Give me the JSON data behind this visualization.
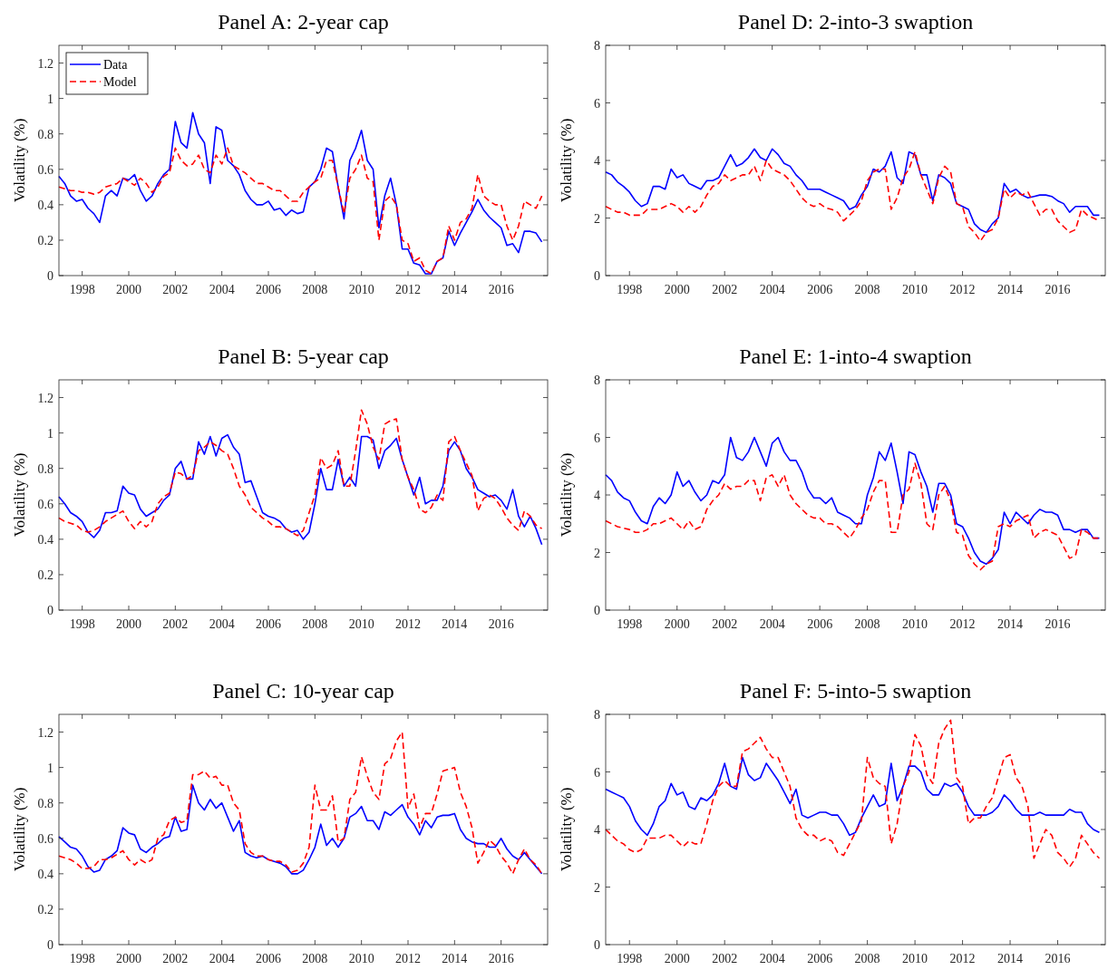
{
  "chart_data": [
    {
      "type": "line",
      "title": "Panel A: 2-year cap",
      "ylabel": "Volatility (%)",
      "legend": "top left",
      "xlim": [
        1997,
        2018
      ],
      "xticks": [
        1998,
        2000,
        2002,
        2004,
        2006,
        2008,
        2010,
        2012,
        2014,
        2016
      ],
      "ylim": [
        0,
        1.3
      ],
      "yticks": [
        0,
        0.2,
        0.4,
        0.6,
        0.8,
        1,
        1.2
      ],
      "x": [
        1997,
        1997.25,
        1997.5,
        1997.75,
        1998,
        1998.25,
        1998.5,
        1998.75,
        1999,
        1999.25,
        1999.5,
        1999.75,
        2000,
        2000.25,
        2000.5,
        2000.75,
        2001,
        2001.25,
        2001.5,
        2001.75,
        2002,
        2002.25,
        2002.5,
        2002.75,
        2003,
        2003.25,
        2003.5,
        2003.75,
        2004,
        2004.25,
        2004.5,
        2004.75,
        2005,
        2005.25,
        2005.5,
        2005.75,
        2006,
        2006.25,
        2006.5,
        2006.75,
        2007,
        2007.25,
        2007.5,
        2007.75,
        2008,
        2008.25,
        2008.5,
        2008.75,
        2009,
        2009.25,
        2009.5,
        2009.75,
        2010,
        2010.25,
        2010.5,
        2010.75,
        2011,
        2011.25,
        2011.5,
        2011.75,
        2012,
        2012.25,
        2012.5,
        2012.75,
        2013,
        2013.25,
        2013.5,
        2013.75,
        2014,
        2014.25,
        2014.5,
        2014.75,
        2015,
        2015.25,
        2015.5,
        2015.75,
        2016,
        2016.25,
        2016.5,
        2016.75,
        2017,
        2017.25,
        2017.5,
        2017.75
      ],
      "series": [
        {
          "name": "Data",
          "color": "#0000ff",
          "line_style": "solid",
          "values": [
            0.56,
            0.52,
            0.45,
            0.42,
            0.43,
            0.38,
            0.35,
            0.3,
            0.45,
            0.48,
            0.45,
            0.55,
            0.54,
            0.57,
            0.48,
            0.42,
            0.45,
            0.52,
            0.57,
            0.6,
            0.87,
            0.75,
            0.72,
            0.92,
            0.8,
            0.75,
            0.52,
            0.84,
            0.82,
            0.65,
            0.62,
            0.57,
            0.48,
            0.43,
            0.4,
            0.4,
            0.42,
            0.37,
            0.38,
            0.34,
            0.37,
            0.35,
            0.36,
            0.5,
            0.53,
            0.6,
            0.72,
            0.7,
            0.5,
            0.32,
            0.65,
            0.72,
            0.82,
            0.65,
            0.6,
            0.27,
            0.45,
            0.55,
            0.4,
            0.15,
            0.15,
            0.07,
            0.06,
            0.01,
            0.01,
            0.08,
            0.1,
            0.25,
            0.17,
            0.24,
            0.3,
            0.36,
            0.43,
            0.37,
            0.33,
            0.3,
            0.27,
            0.17,
            0.18,
            0.13,
            0.25,
            0.25,
            0.24,
            0.19
          ]
        },
        {
          "name": "Model",
          "color": "#ff0000",
          "line_style": "dashed",
          "values": [
            0.5,
            0.49,
            0.48,
            0.48,
            0.47,
            0.47,
            0.46,
            0.47,
            0.5,
            0.51,
            0.52,
            0.55,
            0.53,
            0.51,
            0.55,
            0.52,
            0.47,
            0.5,
            0.56,
            0.58,
            0.72,
            0.65,
            0.62,
            0.63,
            0.68,
            0.6,
            0.58,
            0.68,
            0.63,
            0.72,
            0.62,
            0.6,
            0.58,
            0.55,
            0.52,
            0.52,
            0.5,
            0.48,
            0.48,
            0.45,
            0.42,
            0.42,
            0.47,
            0.5,
            0.53,
            0.55,
            0.65,
            0.65,
            0.5,
            0.35,
            0.55,
            0.6,
            0.68,
            0.55,
            0.53,
            0.2,
            0.42,
            0.45,
            0.4,
            0.2,
            0.18,
            0.08,
            0.1,
            0.03,
            0.01,
            0.08,
            0.1,
            0.28,
            0.2,
            0.3,
            0.32,
            0.38,
            0.57,
            0.45,
            0.42,
            0.4,
            0.4,
            0.28,
            0.2,
            0.28,
            0.42,
            0.4,
            0.38,
            0.45
          ]
        }
      ]
    },
    {
      "type": "line",
      "title": "Panel D: 2-into-3 swaption",
      "ylabel": "Volatility (%)",
      "legend": false,
      "xlim": [
        1997,
        2018
      ],
      "xticks": [
        1998,
        2000,
        2002,
        2004,
        2006,
        2008,
        2010,
        2012,
        2014,
        2016
      ],
      "ylim": [
        0,
        8
      ],
      "yticks": [
        0,
        2,
        4,
        6,
        8
      ],
      "x": [
        1997,
        1997.25,
        1997.5,
        1997.75,
        1998,
        1998.25,
        1998.5,
        1998.75,
        1999,
        1999.25,
        1999.5,
        1999.75,
        2000,
        2000.25,
        2000.5,
        2000.75,
        2001,
        2001.25,
        2001.5,
        2001.75,
        2002,
        2002.25,
        2002.5,
        2002.75,
        2003,
        2003.25,
        2003.5,
        2003.75,
        2004,
        2004.25,
        2004.5,
        2004.75,
        2005,
        2005.25,
        2005.5,
        2005.75,
        2006,
        2006.25,
        2006.5,
        2006.75,
        2007,
        2007.25,
        2007.5,
        2007.75,
        2008,
        2008.25,
        2008.5,
        2008.75,
        2009,
        2009.25,
        2009.5,
        2009.75,
        2010,
        2010.25,
        2010.5,
        2010.75,
        2011,
        2011.25,
        2011.5,
        2011.75,
        2012,
        2012.25,
        2012.5,
        2012.75,
        2013,
        2013.25,
        2013.5,
        2013.75,
        2014,
        2014.25,
        2014.5,
        2014.75,
        2015,
        2015.25,
        2015.5,
        2015.75,
        2016,
        2016.25,
        2016.5,
        2016.75,
        2017,
        2017.25,
        2017.5,
        2017.75
      ],
      "series": [
        {
          "color": "#0000ff",
          "line_style": "solid",
          "values": [
            3.6,
            3.5,
            3.25,
            3.1,
            2.9,
            2.6,
            2.4,
            2.5,
            3.1,
            3.1,
            3.0,
            3.7,
            3.4,
            3.5,
            3.2,
            3.1,
            3.0,
            3.3,
            3.3,
            3.4,
            3.8,
            4.2,
            3.8,
            3.9,
            4.1,
            4.4,
            4.1,
            4.0,
            4.4,
            4.2,
            3.9,
            3.8,
            3.5,
            3.3,
            3.0,
            3.0,
            3.0,
            2.9,
            2.8,
            2.7,
            2.6,
            2.3,
            2.4,
            2.8,
            3.1,
            3.7,
            3.6,
            3.8,
            4.3,
            3.4,
            3.2,
            4.3,
            4.2,
            3.5,
            3.5,
            2.6,
            3.5,
            3.4,
            3.2,
            2.5,
            2.4,
            2.3,
            1.8,
            1.6,
            1.5,
            1.8,
            2.0,
            3.2,
            2.9,
            3.0,
            2.8,
            2.7,
            2.75,
            2.8,
            2.8,
            2.75,
            2.6,
            2.5,
            2.2,
            2.4,
            2.4,
            2.4,
            2.1,
            2.1
          ]
        },
        {
          "color": "#ff0000",
          "line_style": "dashed",
          "values": [
            2.4,
            2.3,
            2.2,
            2.2,
            2.1,
            2.1,
            2.1,
            2.3,
            2.3,
            2.3,
            2.4,
            2.5,
            2.4,
            2.2,
            2.4,
            2.2,
            2.4,
            2.8,
            3.1,
            3.2,
            3.5,
            3.3,
            3.4,
            3.5,
            3.5,
            3.8,
            3.3,
            4.0,
            3.7,
            3.6,
            3.5,
            3.3,
            3.0,
            2.7,
            2.5,
            2.4,
            2.5,
            2.35,
            2.3,
            2.2,
            1.9,
            2.1,
            2.3,
            2.6,
            3.3,
            3.6,
            3.7,
            3.7,
            2.3,
            2.7,
            3.4,
            3.7,
            4.3,
            3.5,
            3.0,
            2.5,
            3.4,
            3.8,
            3.6,
            2.5,
            2.4,
            1.7,
            1.5,
            1.2,
            1.5,
            1.6,
            2.0,
            3.0,
            2.7,
            2.9,
            2.8,
            2.9,
            2.5,
            2.1,
            2.3,
            2.3,
            1.9,
            1.7,
            1.5,
            1.6,
            2.3,
            2.1,
            2.0,
            1.9
          ]
        }
      ]
    },
    {
      "type": "line",
      "title": "Panel B: 5-year cap",
      "ylabel": "Volatility (%)",
      "legend": false,
      "xlim": [
        1997,
        2018
      ],
      "xticks": [
        1998,
        2000,
        2002,
        2004,
        2006,
        2008,
        2010,
        2012,
        2014,
        2016
      ],
      "ylim": [
        0,
        1.3
      ],
      "yticks": [
        0,
        0.2,
        0.4,
        0.6,
        0.8,
        1,
        1.2
      ],
      "x": [
        1997,
        1997.25,
        1997.5,
        1997.75,
        1998,
        1998.25,
        1998.5,
        1998.75,
        1999,
        1999.25,
        1999.5,
        1999.75,
        2000,
        2000.25,
        2000.5,
        2000.75,
        2001,
        2001.25,
        2001.5,
        2001.75,
        2002,
        2002.25,
        2002.5,
        2002.75,
        2003,
        2003.25,
        2003.5,
        2003.75,
        2004,
        2004.25,
        2004.5,
        2004.75,
        2005,
        2005.25,
        2005.5,
        2005.75,
        2006,
        2006.25,
        2006.5,
        2006.75,
        2007,
        2007.25,
        2007.5,
        2007.75,
        2008,
        2008.25,
        2008.5,
        2008.75,
        2009,
        2009.25,
        2009.5,
        2009.75,
        2010,
        2010.25,
        2010.5,
        2010.75,
        2011,
        2011.25,
        2011.5,
        2011.75,
        2012,
        2012.25,
        2012.5,
        2012.75,
        2013,
        2013.25,
        2013.5,
        2013.75,
        2014,
        2014.25,
        2014.5,
        2014.75,
        2015,
        2015.25,
        2015.5,
        2015.75,
        2016,
        2016.25,
        2016.5,
        2016.75,
        2017,
        2017.25,
        2017.5,
        2017.75
      ],
      "series": [
        {
          "color": "#0000ff",
          "line_style": "solid",
          "values": [
            0.64,
            0.6,
            0.55,
            0.53,
            0.5,
            0.44,
            0.41,
            0.45,
            0.55,
            0.55,
            0.56,
            0.7,
            0.66,
            0.65,
            0.57,
            0.53,
            0.55,
            0.57,
            0.62,
            0.65,
            0.8,
            0.84,
            0.74,
            0.74,
            0.95,
            0.88,
            0.98,
            0.87,
            0.97,
            0.99,
            0.92,
            0.88,
            0.72,
            0.73,
            0.64,
            0.55,
            0.53,
            0.52,
            0.5,
            0.46,
            0.44,
            0.45,
            0.4,
            0.44,
            0.6,
            0.8,
            0.68,
            0.68,
            0.85,
            0.7,
            0.75,
            0.7,
            0.98,
            0.98,
            0.96,
            0.8,
            0.9,
            0.93,
            0.97,
            0.85,
            0.75,
            0.65,
            0.75,
            0.6,
            0.62,
            0.62,
            0.7,
            0.9,
            0.95,
            0.9,
            0.8,
            0.75,
            0.68,
            0.66,
            0.64,
            0.65,
            0.62,
            0.57,
            0.68,
            0.53,
            0.47,
            0.53,
            0.46,
            0.37
          ]
        },
        {
          "color": "#ff0000",
          "line_style": "dashed",
          "values": [
            0.52,
            0.5,
            0.49,
            0.48,
            0.45,
            0.44,
            0.45,
            0.47,
            0.5,
            0.52,
            0.54,
            0.56,
            0.5,
            0.46,
            0.5,
            0.47,
            0.5,
            0.6,
            0.64,
            0.66,
            0.78,
            0.77,
            0.74,
            0.76,
            0.9,
            0.92,
            0.95,
            0.93,
            0.9,
            0.88,
            0.8,
            0.7,
            0.65,
            0.58,
            0.55,
            0.52,
            0.5,
            0.47,
            0.47,
            0.46,
            0.44,
            0.42,
            0.45,
            0.55,
            0.65,
            0.86,
            0.8,
            0.82,
            0.9,
            0.7,
            0.7,
            0.9,
            1.13,
            1.05,
            0.92,
            0.85,
            1.05,
            1.07,
            1.08,
            0.85,
            0.75,
            0.68,
            0.57,
            0.55,
            0.58,
            0.65,
            0.62,
            0.95,
            0.98,
            0.9,
            0.83,
            0.76,
            0.56,
            0.63,
            0.65,
            0.63,
            0.58,
            0.52,
            0.48,
            0.45,
            0.56,
            0.53,
            0.48,
            0.46
          ]
        }
      ]
    },
    {
      "type": "line",
      "title": "Panel E: 1-into-4 swaption",
      "ylabel": "Volatility (%)",
      "legend": false,
      "xlim": [
        1997,
        2018
      ],
      "xticks": [
        1998,
        2000,
        2002,
        2004,
        2006,
        2008,
        2010,
        2012,
        2014,
        2016
      ],
      "ylim": [
        0,
        8
      ],
      "yticks": [
        0,
        2,
        4,
        6,
        8
      ],
      "x": [
        1997,
        1997.25,
        1997.5,
        1997.75,
        1998,
        1998.25,
        1998.5,
        1998.75,
        1999,
        1999.25,
        1999.5,
        1999.75,
        2000,
        2000.25,
        2000.5,
        2000.75,
        2001,
        2001.25,
        2001.5,
        2001.75,
        2002,
        2002.25,
        2002.5,
        2002.75,
        2003,
        2003.25,
        2003.5,
        2003.75,
        2004,
        2004.25,
        2004.5,
        2004.75,
        2005,
        2005.25,
        2005.5,
        2005.75,
        2006,
        2006.25,
        2006.5,
        2006.75,
        2007,
        2007.25,
        2007.5,
        2007.75,
        2008,
        2008.25,
        2008.5,
        2008.75,
        2009,
        2009.25,
        2009.5,
        2009.75,
        2010,
        2010.25,
        2010.5,
        2010.75,
        2011,
        2011.25,
        2011.5,
        2011.75,
        2012,
        2012.25,
        2012.5,
        2012.75,
        2013,
        2013.25,
        2013.5,
        2013.75,
        2014,
        2014.25,
        2014.5,
        2014.75,
        2015,
        2015.25,
        2015.5,
        2015.75,
        2016,
        2016.25,
        2016.5,
        2016.75,
        2017,
        2017.25,
        2017.5,
        2017.75
      ],
      "series": [
        {
          "color": "#0000ff",
          "line_style": "solid",
          "values": [
            4.7,
            4.5,
            4.1,
            3.9,
            3.8,
            3.4,
            3.1,
            3.0,
            3.6,
            3.9,
            3.7,
            4.0,
            4.8,
            4.3,
            4.5,
            4.1,
            3.8,
            4.0,
            4.5,
            4.4,
            4.7,
            6.0,
            5.3,
            5.2,
            5.5,
            6.0,
            5.5,
            5.0,
            5.8,
            6.0,
            5.5,
            5.2,
            5.2,
            4.8,
            4.2,
            3.9,
            3.9,
            3.7,
            3.9,
            3.4,
            3.3,
            3.2,
            3.0,
            3.0,
            4.0,
            4.6,
            5.5,
            5.2,
            5.8,
            4.8,
            3.7,
            5.5,
            5.4,
            4.8,
            4.3,
            3.4,
            4.4,
            4.4,
            4.0,
            3.0,
            2.9,
            2.5,
            2.0,
            1.7,
            1.6,
            1.8,
            2.1,
            3.4,
            3.0,
            3.4,
            3.2,
            3.0,
            3.3,
            3.5,
            3.4,
            3.4,
            3.3,
            2.8,
            2.8,
            2.7,
            2.8,
            2.8,
            2.5,
            2.5
          ]
        },
        {
          "color": "#ff0000",
          "line_style": "dashed",
          "values": [
            3.1,
            3.0,
            2.9,
            2.85,
            2.8,
            2.7,
            2.7,
            2.8,
            3.0,
            3.0,
            3.1,
            3.2,
            3.0,
            2.8,
            3.1,
            2.8,
            2.9,
            3.5,
            3.8,
            4.0,
            4.4,
            4.2,
            4.3,
            4.3,
            4.5,
            4.5,
            3.8,
            4.6,
            4.7,
            4.3,
            4.7,
            4.0,
            3.7,
            3.5,
            3.3,
            3.2,
            3.2,
            3.0,
            3.0,
            2.9,
            2.7,
            2.5,
            2.8,
            3.2,
            3.5,
            4.1,
            4.5,
            4.5,
            2.7,
            2.7,
            4.0,
            4.2,
            5.1,
            4.4,
            3.0,
            2.8,
            4.0,
            4.3,
            3.8,
            2.7,
            2.6,
            1.9,
            1.6,
            1.4,
            1.6,
            1.7,
            2.9,
            3.0,
            2.9,
            3.1,
            3.2,
            3.3,
            2.5,
            2.7,
            2.8,
            2.7,
            2.6,
            2.2,
            1.8,
            1.9,
            2.8,
            2.7,
            2.5,
            2.5
          ]
        }
      ]
    },
    {
      "type": "line",
      "title": "Panel C: 10-year cap",
      "ylabel": "Volatility (%)",
      "legend": false,
      "xlim": [
        1997,
        2018
      ],
      "xticks": [
        1998,
        2000,
        2002,
        2004,
        2006,
        2008,
        2010,
        2012,
        2014,
        2016
      ],
      "ylim": [
        0,
        1.3
      ],
      "yticks": [
        0,
        0.2,
        0.4,
        0.6,
        0.8,
        1,
        1.2
      ],
      "x": [
        1997,
        1997.25,
        1997.5,
        1997.75,
        1998,
        1998.25,
        1998.5,
        1998.75,
        1999,
        1999.25,
        1999.5,
        1999.75,
        2000,
        2000.25,
        2000.5,
        2000.75,
        2001,
        2001.25,
        2001.5,
        2001.75,
        2002,
        2002.25,
        2002.5,
        2002.75,
        2003,
        2003.25,
        2003.5,
        2003.75,
        2004,
        2004.25,
        2004.5,
        2004.75,
        2005,
        2005.25,
        2005.5,
        2005.75,
        2006,
        2006.25,
        2006.5,
        2006.75,
        2007,
        2007.25,
        2007.5,
        2007.75,
        2008,
        2008.25,
        2008.5,
        2008.75,
        2009,
        2009.25,
        2009.5,
        2009.75,
        2010,
        2010.25,
        2010.5,
        2010.75,
        2011,
        2011.25,
        2011.5,
        2011.75,
        2012,
        2012.25,
        2012.5,
        2012.75,
        2013,
        2013.25,
        2013.5,
        2013.75,
        2014,
        2014.25,
        2014.5,
        2014.75,
        2015,
        2015.25,
        2015.5,
        2015.75,
        2016,
        2016.25,
        2016.5,
        2016.75,
        2017,
        2017.25,
        2017.5,
        2017.75
      ],
      "series": [
        {
          "color": "#0000ff",
          "line_style": "solid",
          "values": [
            0.61,
            0.58,
            0.55,
            0.54,
            0.5,
            0.44,
            0.41,
            0.42,
            0.48,
            0.5,
            0.53,
            0.66,
            0.63,
            0.62,
            0.54,
            0.52,
            0.55,
            0.57,
            0.6,
            0.61,
            0.72,
            0.64,
            0.65,
            0.9,
            0.8,
            0.76,
            0.82,
            0.77,
            0.8,
            0.72,
            0.64,
            0.7,
            0.52,
            0.5,
            0.49,
            0.5,
            0.48,
            0.47,
            0.46,
            0.44,
            0.4,
            0.4,
            0.42,
            0.48,
            0.55,
            0.68,
            0.56,
            0.6,
            0.55,
            0.6,
            0.72,
            0.74,
            0.78,
            0.7,
            0.7,
            0.65,
            0.75,
            0.73,
            0.76,
            0.79,
            0.72,
            0.68,
            0.62,
            0.7,
            0.66,
            0.72,
            0.73,
            0.73,
            0.74,
            0.65,
            0.6,
            0.58,
            0.57,
            0.57,
            0.55,
            0.55,
            0.6,
            0.54,
            0.5,
            0.48,
            0.52,
            0.48,
            0.44,
            0.4
          ]
        },
        {
          "color": "#ff0000",
          "line_style": "dashed",
          "values": [
            0.5,
            0.49,
            0.48,
            0.46,
            0.43,
            0.43,
            0.44,
            0.48,
            0.48,
            0.49,
            0.51,
            0.53,
            0.48,
            0.45,
            0.48,
            0.46,
            0.48,
            0.6,
            0.62,
            0.7,
            0.72,
            0.69,
            0.7,
            0.96,
            0.96,
            0.98,
            0.94,
            0.95,
            0.9,
            0.9,
            0.8,
            0.76,
            0.57,
            0.52,
            0.5,
            0.5,
            0.48,
            0.47,
            0.47,
            0.45,
            0.41,
            0.42,
            0.46,
            0.55,
            0.9,
            0.76,
            0.76,
            0.84,
            0.58,
            0.6,
            0.82,
            0.86,
            1.06,
            0.95,
            0.86,
            0.82,
            1.02,
            1.05,
            1.15,
            1.2,
            0.77,
            0.85,
            0.66,
            0.74,
            0.74,
            0.85,
            0.98,
            0.99,
            1.0,
            0.86,
            0.78,
            0.66,
            0.46,
            0.52,
            0.59,
            0.56,
            0.5,
            0.46,
            0.4,
            0.48,
            0.54,
            0.48,
            0.45,
            0.4
          ]
        }
      ]
    },
    {
      "type": "line",
      "title": "Panel F: 5-into-5 swaption",
      "ylabel": "Volatility (%)",
      "legend": false,
      "xlim": [
        1997,
        2018
      ],
      "xticks": [
        1998,
        2000,
        2002,
        2004,
        2006,
        2008,
        2010,
        2012,
        2014,
        2016
      ],
      "ylim": [
        0,
        8
      ],
      "yticks": [
        0,
        2,
        4,
        6,
        8
      ],
      "x": [
        1997,
        1997.25,
        1997.5,
        1997.75,
        1998,
        1998.25,
        1998.5,
        1998.75,
        1999,
        1999.25,
        1999.5,
        1999.75,
        2000,
        2000.25,
        2000.5,
        2000.75,
        2001,
        2001.25,
        2001.5,
        2001.75,
        2002,
        2002.25,
        2002.5,
        2002.75,
        2003,
        2003.25,
        2003.5,
        2003.75,
        2004,
        2004.25,
        2004.5,
        2004.75,
        2005,
        2005.25,
        2005.5,
        2005.75,
        2006,
        2006.25,
        2006.5,
        2006.75,
        2007,
        2007.25,
        2007.5,
        2007.75,
        2008,
        2008.25,
        2008.5,
        2008.75,
        2009,
        2009.25,
        2009.5,
        2009.75,
        2010,
        2010.25,
        2010.5,
        2010.75,
        2011,
        2011.25,
        2011.5,
        2011.75,
        2012,
        2012.25,
        2012.5,
        2012.75,
        2013,
        2013.25,
        2013.5,
        2013.75,
        2014,
        2014.25,
        2014.5,
        2014.75,
        2015,
        2015.25,
        2015.5,
        2015.75,
        2016,
        2016.25,
        2016.5,
        2016.75,
        2017,
        2017.25,
        2017.5,
        2017.75
      ],
      "series": [
        {
          "color": "#0000ff",
          "line_style": "solid",
          "values": [
            5.4,
            5.3,
            5.2,
            5.1,
            4.8,
            4.3,
            4.0,
            3.8,
            4.2,
            4.8,
            5.0,
            5.6,
            5.2,
            5.3,
            4.8,
            4.7,
            5.1,
            5.0,
            5.2,
            5.6,
            6.3,
            5.5,
            5.4,
            6.5,
            5.9,
            5.7,
            5.8,
            6.3,
            6.0,
            5.7,
            5.3,
            4.9,
            5.4,
            4.5,
            4.4,
            4.5,
            4.6,
            4.6,
            4.5,
            4.5,
            4.2,
            3.8,
            3.9,
            4.4,
            4.8,
            5.2,
            4.8,
            4.9,
            6.3,
            5.0,
            5.5,
            6.2,
            6.2,
            6.0,
            5.4,
            5.2,
            5.2,
            5.6,
            5.5,
            5.6,
            5.3,
            4.8,
            4.5,
            4.5,
            4.5,
            4.6,
            4.8,
            5.2,
            5.0,
            4.7,
            4.5,
            4.5,
            4.5,
            4.6,
            4.5,
            4.5,
            4.5,
            4.5,
            4.7,
            4.6,
            4.6,
            4.2,
            4.0,
            3.9
          ]
        },
        {
          "color": "#ff0000",
          "line_style": "dashed",
          "values": [
            4.0,
            3.8,
            3.6,
            3.5,
            3.3,
            3.2,
            3.3,
            3.7,
            3.7,
            3.7,
            3.8,
            3.8,
            3.6,
            3.4,
            3.6,
            3.5,
            3.5,
            4.2,
            5.0,
            5.5,
            5.7,
            5.5,
            5.5,
            6.7,
            6.8,
            7.0,
            7.2,
            6.8,
            6.5,
            6.5,
            6.0,
            5.5,
            4.4,
            4.0,
            3.8,
            3.8,
            3.6,
            3.7,
            3.6,
            3.2,
            3.1,
            3.5,
            3.9,
            4.3,
            6.5,
            5.8,
            5.6,
            5.5,
            3.5,
            4.2,
            5.5,
            6.0,
            7.3,
            6.9,
            5.9,
            5.6,
            7.0,
            7.5,
            7.8,
            5.8,
            5.5,
            4.2,
            4.4,
            4.4,
            4.8,
            5.1,
            5.8,
            6.5,
            6.6,
            5.8,
            5.5,
            4.8,
            3.0,
            3.5,
            4.0,
            3.8,
            3.2,
            3.0,
            2.7,
            3.0,
            3.8,
            3.5,
            3.2,
            3.0
          ]
        }
      ]
    }
  ]
}
